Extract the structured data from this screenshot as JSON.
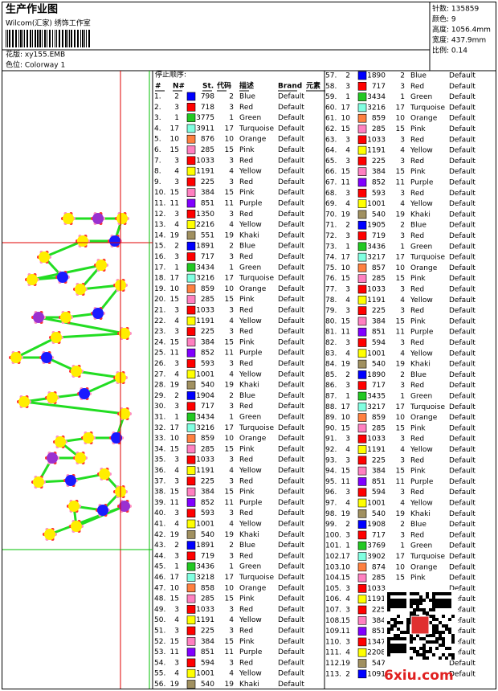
{
  "header": {
    "title": "生产作业图",
    "studio": "Wilcom(汇家) 绣饰工作室",
    "design": "花版: xy155.EMB",
    "colorway": "色位: Colorway 1"
  },
  "info": [
    "针数: 135859",
    "颜色: 9",
    "高度: 1056.4mm",
    "宽度: 437.9mm",
    "比例: 0.14"
  ],
  "palette": {
    "1": "#22c822",
    "2": "#0000ff",
    "3": "#ff0000",
    "4": "#ffff00",
    "10": "#ff8040",
    "11": "#8000ff",
    "15": "#ff80c0",
    "17": "#80ffe0",
    "19": "#a09060"
  },
  "table": {
    "stop_label": "停止顺序:",
    "columns": [
      "#",
      "N#",
      "St.",
      "代码",
      "描述",
      "Brand",
      "元素"
    ],
    "rows": [
      {
        "no": "1.",
        "n": 2,
        "st": 798,
        "code": 2,
        "desc": "Blue",
        "brand": "Default"
      },
      {
        "no": "2.",
        "n": 3,
        "st": 718,
        "code": 3,
        "desc": "Red",
        "brand": "Default"
      },
      {
        "no": "3.",
        "n": 1,
        "st": 3775,
        "code": 1,
        "desc": "Green",
        "brand": "Default"
      },
      {
        "no": "4.",
        "n": 17,
        "st": 3911,
        "code": 17,
        "desc": "Turquoise",
        "brand": "Default"
      },
      {
        "no": "5.",
        "n": 10,
        "st": 876,
        "code": 10,
        "desc": "Orange",
        "brand": "Default"
      },
      {
        "no": "6.",
        "n": 15,
        "st": 285,
        "code": 15,
        "desc": "Pink",
        "brand": "Default"
      },
      {
        "no": "7.",
        "n": 3,
        "st": 1033,
        "code": 3,
        "desc": "Red",
        "brand": "Default"
      },
      {
        "no": "8.",
        "n": 4,
        "st": 1191,
        "code": 4,
        "desc": "Yellow",
        "brand": "Default"
      },
      {
        "no": "9.",
        "n": 3,
        "st": 225,
        "code": 3,
        "desc": "Red",
        "brand": "Default"
      },
      {
        "no": "10.",
        "n": 15,
        "st": 384,
        "code": 15,
        "desc": "Pink",
        "brand": "Default"
      },
      {
        "no": "11.",
        "n": 11,
        "st": 851,
        "code": 11,
        "desc": "Purple",
        "brand": "Default"
      },
      {
        "no": "12.",
        "n": 3,
        "st": 1350,
        "code": 3,
        "desc": "Red",
        "brand": "Default"
      },
      {
        "no": "13.",
        "n": 4,
        "st": 2216,
        "code": 4,
        "desc": "Yellow",
        "brand": "Default"
      },
      {
        "no": "14.",
        "n": 19,
        "st": 551,
        "code": 19,
        "desc": "Khaki",
        "brand": "Default"
      },
      {
        "no": "15.",
        "n": 2,
        "st": 1891,
        "code": 2,
        "desc": "Blue",
        "brand": "Default"
      },
      {
        "no": "16.",
        "n": 3,
        "st": 717,
        "code": 3,
        "desc": "Red",
        "brand": "Default"
      },
      {
        "no": "17.",
        "n": 1,
        "st": 3434,
        "code": 1,
        "desc": "Green",
        "brand": "Default"
      },
      {
        "no": "18.",
        "n": 17,
        "st": 3216,
        "code": 17,
        "desc": "Turquoise",
        "brand": "Default"
      },
      {
        "no": "19.",
        "n": 10,
        "st": 859,
        "code": 10,
        "desc": "Orange",
        "brand": "Default"
      },
      {
        "no": "20.",
        "n": 15,
        "st": 285,
        "code": 15,
        "desc": "Pink",
        "brand": "Default"
      },
      {
        "no": "21.",
        "n": 3,
        "st": 1033,
        "code": 3,
        "desc": "Red",
        "brand": "Default"
      },
      {
        "no": "22.",
        "n": 4,
        "st": 1191,
        "code": 4,
        "desc": "Yellow",
        "brand": "Default"
      },
      {
        "no": "23.",
        "n": 3,
        "st": 225,
        "code": 3,
        "desc": "Red",
        "brand": "Default"
      },
      {
        "no": "24.",
        "n": 15,
        "st": 384,
        "code": 15,
        "desc": "Pink",
        "brand": "Default"
      },
      {
        "no": "25.",
        "n": 11,
        "st": 852,
        "code": 11,
        "desc": "Purple",
        "brand": "Default"
      },
      {
        "no": "26.",
        "n": 3,
        "st": 593,
        "code": 3,
        "desc": "Red",
        "brand": "Default"
      },
      {
        "no": "27.",
        "n": 4,
        "st": 1001,
        "code": 4,
        "desc": "Yellow",
        "brand": "Default"
      },
      {
        "no": "28.",
        "n": 19,
        "st": 540,
        "code": 19,
        "desc": "Khaki",
        "brand": "Default"
      },
      {
        "no": "29.",
        "n": 2,
        "st": 1904,
        "code": 2,
        "desc": "Blue",
        "brand": "Default"
      },
      {
        "no": "30.",
        "n": 3,
        "st": 717,
        "code": 3,
        "desc": "Red",
        "brand": "Default"
      },
      {
        "no": "31.",
        "n": 1,
        "st": 3434,
        "code": 1,
        "desc": "Green",
        "brand": "Default"
      },
      {
        "no": "32.",
        "n": 17,
        "st": 3216,
        "code": 17,
        "desc": "Turquoise",
        "brand": "Default"
      },
      {
        "no": "33.",
        "n": 10,
        "st": 859,
        "code": 10,
        "desc": "Orange",
        "brand": "Default"
      },
      {
        "no": "34.",
        "n": 15,
        "st": 285,
        "code": 15,
        "desc": "Pink",
        "brand": "Default"
      },
      {
        "no": "35.",
        "n": 3,
        "st": 1033,
        "code": 3,
        "desc": "Red",
        "brand": "Default"
      },
      {
        "no": "36.",
        "n": 4,
        "st": 1191,
        "code": 4,
        "desc": "Yellow",
        "brand": "Default"
      },
      {
        "no": "37.",
        "n": 3,
        "st": 225,
        "code": 3,
        "desc": "Red",
        "brand": "Default"
      },
      {
        "no": "38.",
        "n": 15,
        "st": 384,
        "code": 15,
        "desc": "Pink",
        "brand": "Default"
      },
      {
        "no": "39.",
        "n": 11,
        "st": 852,
        "code": 11,
        "desc": "Purple",
        "brand": "Default"
      },
      {
        "no": "40.",
        "n": 3,
        "st": 593,
        "code": 3,
        "desc": "Red",
        "brand": "Default"
      },
      {
        "no": "41.",
        "n": 4,
        "st": 1001,
        "code": 4,
        "desc": "Yellow",
        "brand": "Default"
      },
      {
        "no": "42.",
        "n": 19,
        "st": 540,
        "code": 19,
        "desc": "Khaki",
        "brand": "Default"
      },
      {
        "no": "43.",
        "n": 2,
        "st": 1891,
        "code": 2,
        "desc": "Blue",
        "brand": "Default"
      },
      {
        "no": "44.",
        "n": 3,
        "st": 719,
        "code": 3,
        "desc": "Red",
        "brand": "Default"
      },
      {
        "no": "45.",
        "n": 1,
        "st": 3436,
        "code": 1,
        "desc": "Green",
        "brand": "Default"
      },
      {
        "no": "46.",
        "n": 17,
        "st": 3218,
        "code": 17,
        "desc": "Turquoise",
        "brand": "Default"
      },
      {
        "no": "47.",
        "n": 10,
        "st": 858,
        "code": 10,
        "desc": "Orange",
        "brand": "Default"
      },
      {
        "no": "48.",
        "n": 15,
        "st": 285,
        "code": 15,
        "desc": "Pink",
        "brand": "Default"
      },
      {
        "no": "49.",
        "n": 3,
        "st": 1033,
        "code": 3,
        "desc": "Red",
        "brand": "Default"
      },
      {
        "no": "50.",
        "n": 4,
        "st": 1191,
        "code": 4,
        "desc": "Yellow",
        "brand": "Default"
      },
      {
        "no": "51.",
        "n": 3,
        "st": 225,
        "code": 3,
        "desc": "Red",
        "brand": "Default"
      },
      {
        "no": "52.",
        "n": 15,
        "st": 384,
        "code": 15,
        "desc": "Pink",
        "brand": "Default"
      },
      {
        "no": "53.",
        "n": 11,
        "st": 851,
        "code": 11,
        "desc": "Purple",
        "brand": "Default"
      },
      {
        "no": "54.",
        "n": 3,
        "st": 594,
        "code": 3,
        "desc": "Red",
        "brand": "Default"
      },
      {
        "no": "55.",
        "n": 4,
        "st": 1001,
        "code": 4,
        "desc": "Yellow",
        "brand": "Default"
      },
      {
        "no": "56.",
        "n": 19,
        "st": 540,
        "code": 19,
        "desc": "Khaki",
        "brand": "Default"
      },
      {
        "no": "57.",
        "n": 2,
        "st": 1890,
        "code": 2,
        "desc": "Blue",
        "brand": "Default"
      },
      {
        "no": "58.",
        "n": 3,
        "st": 717,
        "code": 3,
        "desc": "Red",
        "brand": "Default"
      },
      {
        "no": "59.",
        "n": 1,
        "st": 3434,
        "code": 1,
        "desc": "Green",
        "brand": "Default"
      },
      {
        "no": "60.",
        "n": 17,
        "st": 3216,
        "code": 17,
        "desc": "Turquoise",
        "brand": "Default"
      },
      {
        "no": "61.",
        "n": 10,
        "st": 859,
        "code": 10,
        "desc": "Orange",
        "brand": "Default"
      },
      {
        "no": "62.",
        "n": 15,
        "st": 285,
        "code": 15,
        "desc": "Pink",
        "brand": "Default"
      },
      {
        "no": "63.",
        "n": 3,
        "st": 1033,
        "code": 3,
        "desc": "Red",
        "brand": "Default"
      },
      {
        "no": "64.",
        "n": 4,
        "st": 1191,
        "code": 4,
        "desc": "Yellow",
        "brand": "Default"
      },
      {
        "no": "65.",
        "n": 3,
        "st": 225,
        "code": 3,
        "desc": "Red",
        "brand": "Default"
      },
      {
        "no": "66.",
        "n": 15,
        "st": 384,
        "code": 15,
        "desc": "Pink",
        "brand": "Default"
      },
      {
        "no": "67.",
        "n": 11,
        "st": 852,
        "code": 11,
        "desc": "Purple",
        "brand": "Default"
      },
      {
        "no": "68.",
        "n": 3,
        "st": 593,
        "code": 3,
        "desc": "Red",
        "brand": "Default"
      },
      {
        "no": "69.",
        "n": 4,
        "st": 1001,
        "code": 4,
        "desc": "Yellow",
        "brand": "Default"
      },
      {
        "no": "70.",
        "n": 19,
        "st": 540,
        "code": 19,
        "desc": "Khaki",
        "brand": "Default"
      },
      {
        "no": "71.",
        "n": 2,
        "st": 1905,
        "code": 2,
        "desc": "Blue",
        "brand": "Default"
      },
      {
        "no": "72.",
        "n": 3,
        "st": 719,
        "code": 3,
        "desc": "Red",
        "brand": "Default"
      },
      {
        "no": "73.",
        "n": 1,
        "st": 3436,
        "code": 1,
        "desc": "Green",
        "brand": "Default"
      },
      {
        "no": "74.",
        "n": 17,
        "st": 3217,
        "code": 17,
        "desc": "Turquoise",
        "brand": "Default"
      },
      {
        "no": "75.",
        "n": 10,
        "st": 857,
        "code": 10,
        "desc": "Orange",
        "brand": "Default"
      },
      {
        "no": "76.",
        "n": 15,
        "st": 285,
        "code": 15,
        "desc": "Pink",
        "brand": "Default"
      },
      {
        "no": "77.",
        "n": 3,
        "st": 1033,
        "code": 3,
        "desc": "Red",
        "brand": "Default"
      },
      {
        "no": "78.",
        "n": 4,
        "st": 1191,
        "code": 4,
        "desc": "Yellow",
        "brand": "Default"
      },
      {
        "no": "79.",
        "n": 3,
        "st": 225,
        "code": 3,
        "desc": "Red",
        "brand": "Default"
      },
      {
        "no": "80.",
        "n": 15,
        "st": 384,
        "code": 15,
        "desc": "Pink",
        "brand": "Default"
      },
      {
        "no": "81.",
        "n": 11,
        "st": 851,
        "code": 11,
        "desc": "Purple",
        "brand": "Default"
      },
      {
        "no": "82.",
        "n": 3,
        "st": 594,
        "code": 3,
        "desc": "Red",
        "brand": "Default"
      },
      {
        "no": "83.",
        "n": 4,
        "st": 1001,
        "code": 4,
        "desc": "Yellow",
        "brand": "Default"
      },
      {
        "no": "84.",
        "n": 19,
        "st": 540,
        "code": 19,
        "desc": "Khaki",
        "brand": "Default"
      },
      {
        "no": "85.",
        "n": 2,
        "st": 1890,
        "code": 2,
        "desc": "Blue",
        "brand": "Default"
      },
      {
        "no": "86.",
        "n": 3,
        "st": 717,
        "code": 3,
        "desc": "Red",
        "brand": "Default"
      },
      {
        "no": "87.",
        "n": 1,
        "st": 3435,
        "code": 1,
        "desc": "Green",
        "brand": "Default"
      },
      {
        "no": "88.",
        "n": 17,
        "st": 3217,
        "code": 17,
        "desc": "Turquoise",
        "brand": "Default"
      },
      {
        "no": "89.",
        "n": 10,
        "st": 859,
        "code": 10,
        "desc": "Orange",
        "brand": "Default"
      },
      {
        "no": "90.",
        "n": 15,
        "st": 285,
        "code": 15,
        "desc": "Pink",
        "brand": "Default"
      },
      {
        "no": "91.",
        "n": 3,
        "st": 1033,
        "code": 3,
        "desc": "Red",
        "brand": "Default"
      },
      {
        "no": "92.",
        "n": 4,
        "st": 1191,
        "code": 4,
        "desc": "Yellow",
        "brand": "Default"
      },
      {
        "no": "93.",
        "n": 3,
        "st": 225,
        "code": 3,
        "desc": "Red",
        "brand": "Default"
      },
      {
        "no": "94.",
        "n": 15,
        "st": 384,
        "code": 15,
        "desc": "Pink",
        "brand": "Default"
      },
      {
        "no": "95.",
        "n": 11,
        "st": 851,
        "code": 11,
        "desc": "Purple",
        "brand": "Default"
      },
      {
        "no": "96.",
        "n": 3,
        "st": 594,
        "code": 3,
        "desc": "Red",
        "brand": "Default"
      },
      {
        "no": "97.",
        "n": 4,
        "st": 1001,
        "code": 4,
        "desc": "Yellow",
        "brand": "Default"
      },
      {
        "no": "98.",
        "n": 19,
        "st": 540,
        "code": 19,
        "desc": "Khaki",
        "brand": "Default"
      },
      {
        "no": "99.",
        "n": 2,
        "st": 1908,
        "code": 2,
        "desc": "Blue",
        "brand": "Default"
      },
      {
        "no": "100.",
        "n": 3,
        "st": 717,
        "code": 3,
        "desc": "Red",
        "brand": "Default"
      },
      {
        "no": "101.",
        "n": 1,
        "st": 3769,
        "code": 1,
        "desc": "Green",
        "brand": "Default"
      },
      {
        "no": "102.",
        "n": 17,
        "st": 3902,
        "code": 17,
        "desc": "Turquoise",
        "brand": "Default"
      },
      {
        "no": "103.",
        "n": 10,
        "st": 874,
        "code": 10,
        "desc": "Orange",
        "brand": "Default"
      },
      {
        "no": "104.",
        "n": 15,
        "st": 285,
        "code": 15,
        "desc": "Pink",
        "brand": "Default"
      },
      {
        "no": "105.",
        "n": 3,
        "st": 1033,
        "brand": "Default"
      },
      {
        "no": "106.",
        "n": 4,
        "st": 1191,
        "brand": "Default"
      },
      {
        "no": "107.",
        "n": 3,
        "st": 225,
        "brand": "Default"
      },
      {
        "no": "108.",
        "n": 15,
        "st": 384,
        "brand": "Default"
      },
      {
        "no": "109.",
        "n": 11,
        "st": 851,
        "brand": "Default"
      },
      {
        "no": "110.",
        "n": 3,
        "st": 1347,
        "brand": "Default"
      },
      {
        "no": "111.",
        "n": 4,
        "st": 2208,
        "brand": "Default"
      },
      {
        "no": "112.",
        "n": 19,
        "st": 547,
        "brand": "Default"
      },
      {
        "no": "113.",
        "n": 2,
        "st": 1091,
        "brand": "Default"
      }
    ]
  },
  "watermark": "6xiu.com"
}
